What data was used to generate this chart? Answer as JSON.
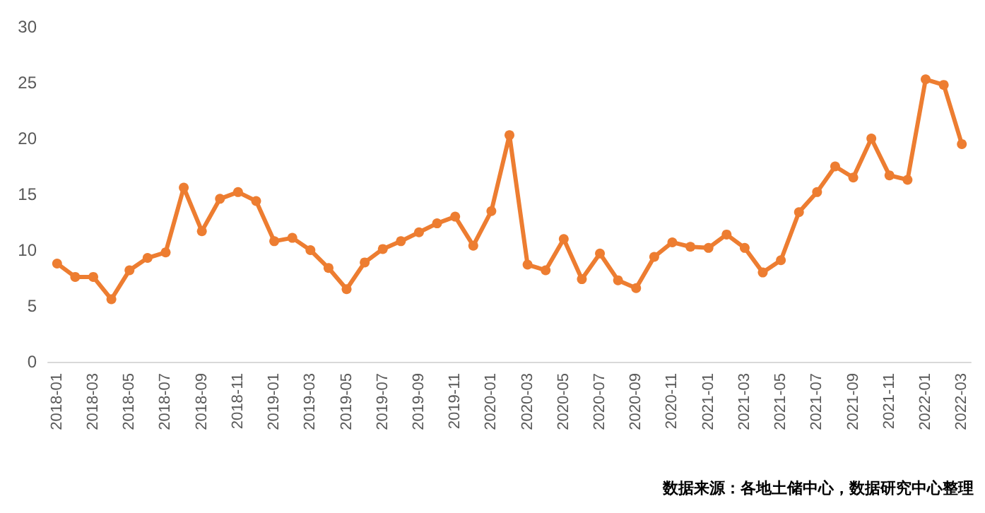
{
  "chart_data": {
    "type": "line",
    "categories": [
      "2018-01",
      null,
      "2018-03",
      null,
      "2018-05",
      null,
      "2018-07",
      null,
      "2018-09",
      null,
      "2018-11",
      null,
      "2019-01",
      null,
      "2019-03",
      null,
      "2019-05",
      null,
      "2019-07",
      null,
      "2019-09",
      null,
      "2019-11",
      null,
      "2020-01",
      null,
      "2020-03",
      null,
      "2020-05",
      null,
      "2020-07",
      null,
      "2020-09",
      null,
      "2020-11",
      null,
      "2021-01",
      null,
      "2021-03",
      null,
      "2021-05",
      null,
      "2021-07",
      null,
      "2021-09",
      null,
      "2021-11",
      null,
      "2022-01",
      null,
      "2022-03"
    ],
    "series": [
      {
        "color": "#ed7d31",
        "values": [
          8.8,
          7.6,
          7.6,
          5.6,
          8.2,
          9.3,
          9.8,
          15.6,
          11.7,
          14.6,
          15.2,
          14.4,
          10.8,
          11.1,
          10.0,
          8.4,
          6.5,
          8.9,
          10.1,
          10.8,
          11.6,
          12.4,
          13.0,
          10.4,
          13.5,
          20.3,
          8.7,
          8.2,
          11.0,
          7.4,
          9.7,
          7.3,
          6.6,
          9.4,
          10.7,
          10.3,
          10.2,
          11.4,
          10.2,
          8.0,
          9.1,
          13.4,
          15.2,
          17.5,
          16.5,
          20.0,
          16.7,
          16.3,
          25.3,
          24.8,
          19.5
        ]
      }
    ],
    "ylim": [
      0,
      30
    ],
    "yticks": [
      0,
      5,
      10,
      15,
      20,
      25,
      30
    ],
    "grid": false,
    "marker": "circle",
    "line_style": "solid",
    "annotations": [
      "数据来源：各地土储中心，数据研究中心整理"
    ]
  }
}
